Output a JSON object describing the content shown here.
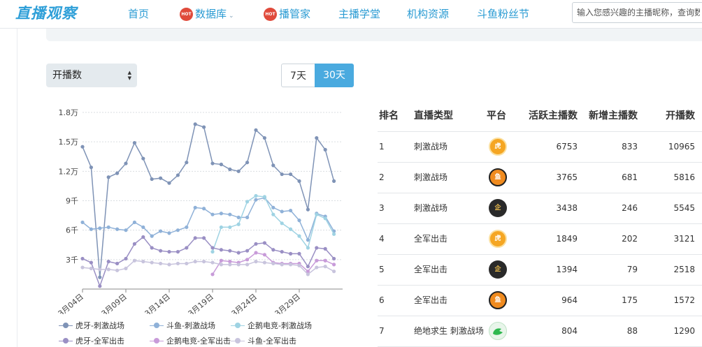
{
  "header": {
    "logo": "直播观察",
    "nav": [
      {
        "label": "首页",
        "hot": false,
        "dropdown": false
      },
      {
        "label": "数据库",
        "hot": true,
        "dropdown": true
      },
      {
        "label": "播管家",
        "hot": true,
        "dropdown": false
      },
      {
        "label": "主播学堂",
        "hot": false,
        "dropdown": false
      },
      {
        "label": "机构资源",
        "hot": false,
        "dropdown": false
      },
      {
        "label": "斗鱼粉丝节",
        "hot": false,
        "dropdown": false
      }
    ],
    "hot_badge": "HOT",
    "search_placeholder": "输入您感兴趣的主播昵称，查询数据"
  },
  "controls": {
    "metric_select": "开播数",
    "range_buttons": [
      {
        "label": "7天",
        "active": false
      },
      {
        "label": "30天",
        "active": true
      }
    ]
  },
  "chart_data": {
    "type": "line",
    "x": [
      "3月04日",
      "3月05日",
      "3月06日",
      "3月07日",
      "3月08日",
      "3月09日",
      "3月10日",
      "3月11日",
      "3月12日",
      "3月13日",
      "3月14日",
      "3月15日",
      "3月16日",
      "3月17日",
      "3月18日",
      "3月19日",
      "3月20日",
      "3月21日",
      "3月22日",
      "3月23日",
      "3月24日",
      "3月25日",
      "3月26日",
      "3月27日",
      "3月28日",
      "3月29日",
      "3月30日",
      "3月31日",
      "4月01日",
      "4月02日",
      "4月03日"
    ],
    "x_tick_labels": [
      "3月04日",
      "3月09日",
      "3月14日",
      "3月19日",
      "3月24日",
      "3月29日"
    ],
    "y_tick_labels": [
      "3千",
      "6千",
      "9千",
      "1.2万",
      "1.5万",
      "1.8万"
    ],
    "ylim": [
      0,
      18000
    ],
    "grid": true,
    "legend_position": "bottom",
    "series": [
      {
        "name": "虎牙-刺激战场",
        "color": "#7f93b6",
        "values": [
          14500,
          12400,
          1200,
          11400,
          11800,
          12800,
          14900,
          13300,
          11200,
          11300,
          10800,
          11600,
          12900,
          16800,
          16500,
          12800,
          12700,
          12200,
          12000,
          12900,
          16200,
          15400,
          12600,
          11700,
          11700,
          11000,
          8100,
          15400,
          14200,
          11000,
          null
        ]
      },
      {
        "name": "斗鱼-刺激战场",
        "color": "#8fb1d8",
        "values": [
          6800,
          6100,
          6200,
          6300,
          6100,
          6000,
          6800,
          6300,
          5400,
          5900,
          5700,
          6000,
          6300,
          8300,
          8200,
          7600,
          7700,
          7600,
          7300,
          7300,
          9100,
          9300,
          8300,
          7900,
          8000,
          7000,
          5000,
          7700,
          7400,
          5900,
          null
        ]
      },
      {
        "name": "企鹅电竞-刺激战场",
        "color": "#9fd3e3",
        "values": [
          null,
          null,
          null,
          null,
          null,
          null,
          null,
          null,
          null,
          null,
          null,
          null,
          null,
          null,
          null,
          3800,
          6300,
          6300,
          6600,
          8900,
          9500,
          9400,
          7600,
          6700,
          6100,
          5400,
          4200,
          7600,
          7200,
          5600,
          null
        ]
      },
      {
        "name": "虎牙-全军出击",
        "color": "#9a8fc4",
        "values": [
          3100,
          2700,
          300,
          2800,
          2600,
          3100,
          4600,
          5300,
          4200,
          3900,
          3800,
          3800,
          4200,
          5200,
          5200,
          4200,
          4000,
          3900,
          3700,
          3900,
          4600,
          4700,
          4000,
          3800,
          3600,
          3600,
          2300,
          4200,
          4100,
          3100,
          null
        ]
      },
      {
        "name": "企鹅电竞-全军出击",
        "color": "#c89bd9",
        "values": [
          null,
          null,
          null,
          null,
          null,
          null,
          null,
          null,
          null,
          null,
          null,
          null,
          null,
          null,
          null,
          1500,
          2900,
          2800,
          2700,
          3000,
          3700,
          3500,
          2700,
          2600,
          2600,
          2600,
          1800,
          2900,
          2900,
          2500,
          null
        ]
      },
      {
        "name": "斗鱼-全军出击",
        "color": "#c8c4dd",
        "values": [
          2200,
          2100,
          2000,
          2000,
          1900,
          2100,
          2900,
          2800,
          2700,
          2600,
          2500,
          2600,
          2600,
          2800,
          2800,
          2700,
          2500,
          2500,
          2500,
          2500,
          2800,
          2700,
          2600,
          2500,
          2500,
          2400,
          1500,
          2200,
          2300,
          1800,
          null
        ]
      }
    ]
  },
  "table": {
    "headers": [
      "排名",
      "直播类型",
      "平台",
      "活跃主播数",
      "新增主播数",
      "开播数"
    ],
    "rows": [
      {
        "rank": "1",
        "type": "刺激战场",
        "platform_icon": "huya-icon",
        "platform_text": "虎",
        "active": "6753",
        "new": "833",
        "streams": "10965"
      },
      {
        "rank": "2",
        "type": "刺激战场",
        "platform_icon": "douyu-icon",
        "platform_text": "鱼",
        "active": "3765",
        "new": "681",
        "streams": "5816"
      },
      {
        "rank": "3",
        "type": "刺激战场",
        "platform_icon": "qie-icon",
        "platform_text": "企",
        "active": "3438",
        "new": "246",
        "streams": "5545"
      },
      {
        "rank": "4",
        "type": "全军出击",
        "platform_icon": "huya-icon",
        "platform_text": "虎",
        "active": "1849",
        "new": "202",
        "streams": "3121"
      },
      {
        "rank": "5",
        "type": "全军出击",
        "platform_icon": "qie-icon",
        "platform_text": "企",
        "active": "1394",
        "new": "79",
        "streams": "2518"
      },
      {
        "rank": "6",
        "type": "全军出击",
        "platform_icon": "douyu-icon",
        "platform_text": "鱼",
        "active": "964",
        "new": "175",
        "streams": "1572"
      },
      {
        "rank": "7",
        "type": "绝地求生 刺激战场",
        "platform_icon": "pubg-icon",
        "platform_text": "",
        "active": "804",
        "new": "88",
        "streams": "1290"
      }
    ]
  }
}
